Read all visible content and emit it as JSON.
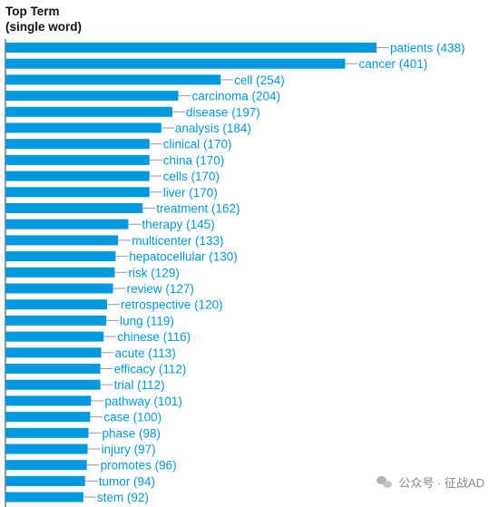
{
  "title_lines": [
    "Top Term",
    "(single word)"
  ],
  "watermark_text": "公众号 · 征战AD",
  "chart_data": {
    "type": "bar",
    "orientation": "horizontal",
    "bar_color": "#0099e0",
    "label_color": "#0099e0",
    "categories": [
      "patients",
      "cancer",
      "cell",
      "carcinoma",
      "disease",
      "analysis",
      "clinical",
      "china",
      "cells",
      "liver",
      "treatment",
      "therapy",
      "multicenter",
      "hepatocellular",
      "risk",
      "review",
      "retrospective",
      "lung",
      "chinese",
      "acute",
      "efficacy",
      "trial",
      "pathway",
      "case",
      "phase",
      "injury",
      "promotes",
      "tumor",
      "stem"
    ],
    "values": [
      438,
      401,
      254,
      204,
      197,
      184,
      170,
      170,
      170,
      170,
      162,
      145,
      133,
      130,
      129,
      127,
      120,
      119,
      116,
      113,
      112,
      112,
      101,
      100,
      98,
      97,
      96,
      94,
      92
    ],
    "xlim": [
      0,
      438
    ]
  }
}
